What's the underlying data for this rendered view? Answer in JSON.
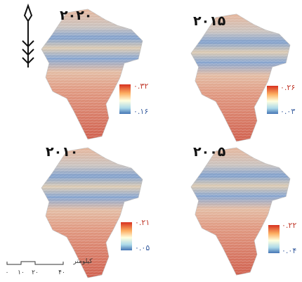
{
  "panels": [
    {
      "year": "۲۰۲۰",
      "legend_max": "۰.۳۲",
      "legend_min": "۰.۱۶"
    },
    {
      "year": "۲۰۱۵",
      "legend_max": "۰.۲۶",
      "legend_min": "۰.۰۳"
    },
    {
      "year": "۲۰۱۰",
      "legend_max": "۰.۲۱",
      "legend_min": "۰.۰۵"
    },
    {
      "year": "۲۰۰۵",
      "legend_max": "۰.۲۲",
      "legend_min": "۰.۰۴"
    }
  ],
  "scale_bar": {
    "unit": "کیلومتر",
    "ticks": [
      "۰",
      "۱۰",
      "۲۰",
      "۴۰"
    ]
  }
}
